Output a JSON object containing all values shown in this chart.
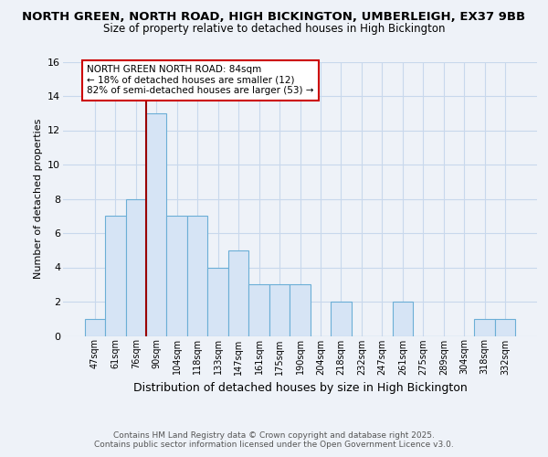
{
  "title1": "NORTH GREEN, NORTH ROAD, HIGH BICKINGTON, UMBERLEIGH, EX37 9BB",
  "title2": "Size of property relative to detached houses in High Bickington",
  "xlabel": "Distribution of detached houses by size in High Bickington",
  "ylabel": "Number of detached properties",
  "bar_labels": [
    "47sqm",
    "61sqm",
    "76sqm",
    "90sqm",
    "104sqm",
    "118sqm",
    "133sqm",
    "147sqm",
    "161sqm",
    "175sqm",
    "190sqm",
    "204sqm",
    "218sqm",
    "232sqm",
    "247sqm",
    "261sqm",
    "275sqm",
    "289sqm",
    "304sqm",
    "318sqm",
    "332sqm"
  ],
  "bar_values": [
    1,
    7,
    8,
    13,
    7,
    7,
    4,
    5,
    3,
    3,
    3,
    0,
    2,
    0,
    0,
    2,
    0,
    0,
    0,
    1,
    1
  ],
  "bar_color": "#d6e4f5",
  "bar_edge_color": "#6baed6",
  "vline_color": "#990000",
  "annotation_text": "NORTH GREEN NORTH ROAD: 84sqm\n← 18% of detached houses are smaller (12)\n82% of semi-detached houses are larger (53) →",
  "annotation_box_edgecolor": "#cc0000",
  "annotation_box_facecolor": "#ffffff",
  "ylim": [
    0,
    16
  ],
  "yticks": [
    0,
    2,
    4,
    6,
    8,
    10,
    12,
    14,
    16
  ],
  "footnote1": "Contains HM Land Registry data © Crown copyright and database right 2025.",
  "footnote2": "Contains public sector information licensed under the Open Government Licence v3.0.",
  "bg_color": "#eef2f8",
  "plot_bg_color": "#eef2f8",
  "grid_color": "#c8d8ec"
}
